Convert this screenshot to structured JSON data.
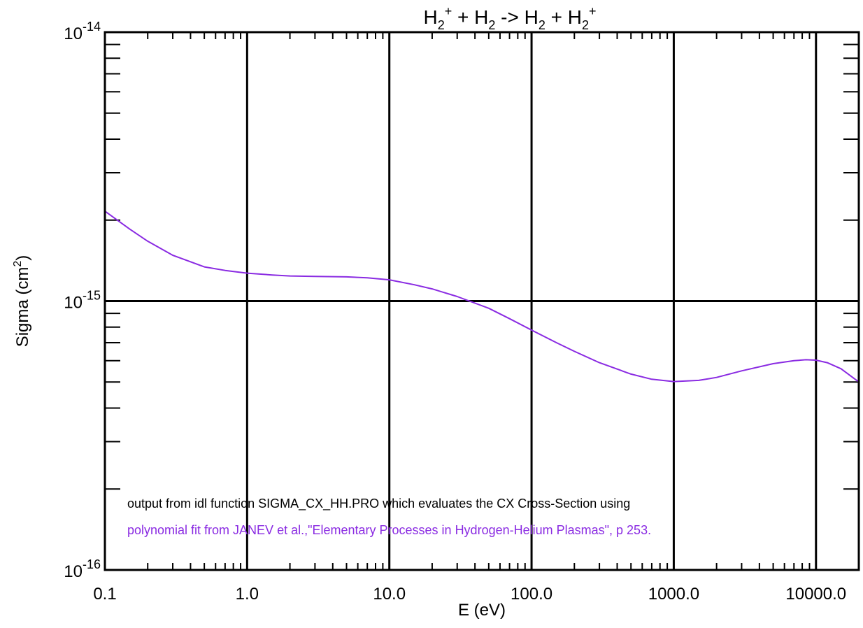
{
  "chart_data": {
    "type": "line",
    "title_parts": [
      {
        "t": "H",
        "s": "n"
      },
      {
        "t": "2",
        "s": "sub"
      },
      {
        "t": "+",
        "s": "sup"
      },
      {
        "t": " + H",
        "s": "n"
      },
      {
        "t": "2",
        "s": "sub"
      },
      {
        "t": " -> H",
        "s": "n"
      },
      {
        "t": "2",
        "s": "sub"
      },
      {
        "t": " + H",
        "s": "n"
      },
      {
        "t": "2",
        "s": "sub"
      },
      {
        "t": "+",
        "s": "sup"
      }
    ],
    "xlabel": "E (eV)",
    "ylabel_main": "Sigma (cm",
    "ylabel_sup": "2",
    "ylabel_end": ")",
    "x_scale": "log",
    "y_scale": "log",
    "xlim": [
      0.1,
      20000
    ],
    "ylim": [
      1e-16,
      1e-14
    ],
    "grid": "major decades",
    "x_major_ticks": [
      {
        "value": 0.1,
        "label": "0.1"
      },
      {
        "value": 1,
        "label": "1.0"
      },
      {
        "value": 10,
        "label": "10.0"
      },
      {
        "value": 100,
        "label": "100.0"
      },
      {
        "value": 1000,
        "label": "1000.0"
      },
      {
        "value": 10000,
        "label": "10000.0"
      }
    ],
    "y_major_ticks": [
      {
        "value": 1e-16,
        "base": "10",
        "exp": "-16"
      },
      {
        "value": 1e-15,
        "base": "10",
        "exp": "-15"
      },
      {
        "value": 1e-14,
        "base": "10",
        "exp": "-14"
      }
    ],
    "series": [
      {
        "color": "#8a2be2",
        "x": [
          0.1,
          0.15,
          0.2,
          0.3,
          0.5,
          0.7,
          1.0,
          1.5,
          2,
          3,
          5,
          7,
          10,
          15,
          20,
          30,
          50,
          70,
          100,
          150,
          200,
          300,
          500,
          700,
          1000,
          1500,
          2000,
          3000,
          5000,
          7000,
          8500,
          10000,
          12000,
          15000,
          20000
        ],
        "y": [
          2.16e-15,
          1.85e-15,
          1.67e-15,
          1.48e-15,
          1.34e-15,
          1.3e-15,
          1.27e-15,
          1.25e-15,
          1.24e-15,
          1.235e-15,
          1.23e-15,
          1.22e-15,
          1.2e-15,
          1.15e-15,
          1.11e-15,
          1.04e-15,
          9.4e-16,
          8.6e-16,
          7.8e-16,
          7e-16,
          6.5e-16,
          5.9e-16,
          5.35e-16,
          5.12e-16,
          5.02e-16,
          5.07e-16,
          5.2e-16,
          5.5e-16,
          5.85e-16,
          6e-16,
          6.05e-16,
          6.03e-16,
          5.9e-16,
          5.6e-16,
          5e-16
        ]
      }
    ],
    "annotations": [
      {
        "text": "output from idl function SIGMA_CX_HH.PRO which evaluates the CX Cross-Section using",
        "color": "#000000"
      },
      {
        "text": "polynomial fit from JANEV et al.,\"Elementary Processes in Hydrogen-Helium Plasmas\", p 253.",
        "color": "#8a2be2"
      }
    ]
  }
}
